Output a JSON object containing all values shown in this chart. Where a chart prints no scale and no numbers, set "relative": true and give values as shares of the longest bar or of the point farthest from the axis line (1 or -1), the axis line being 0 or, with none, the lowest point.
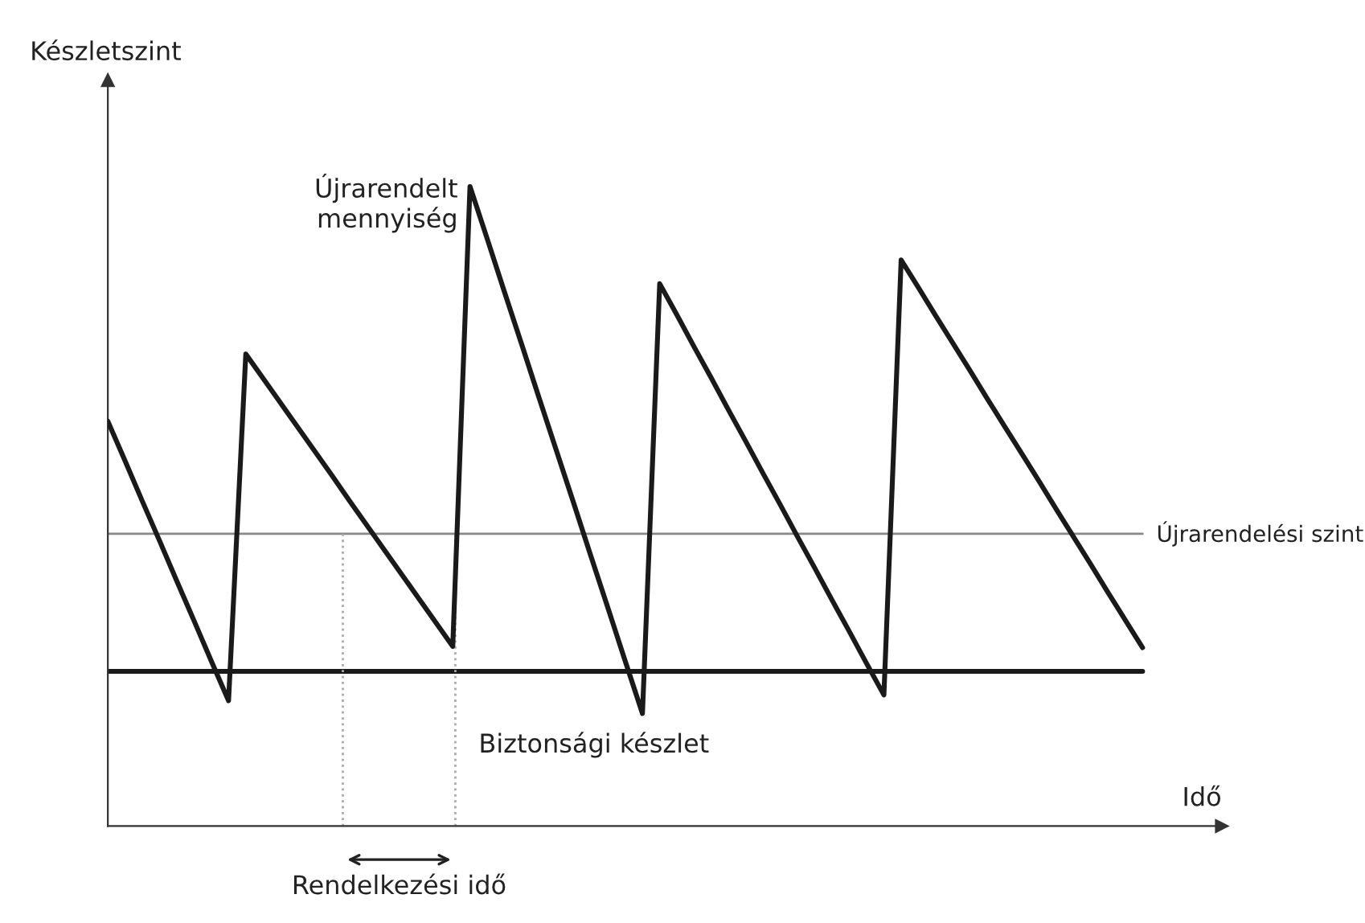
{
  "chart_data": {
    "type": "line",
    "relative": true,
    "xlabel": "Idő",
    "ylabel": "Készletszint",
    "categories": [
      null,
      null,
      null,
      null,
      null,
      null,
      null,
      null,
      null,
      null,
      null,
      null,
      null,
      null,
      null,
      null,
      null,
      null,
      null,
      null,
      null,
      null,
      null,
      null,
      null,
      null,
      null,
      null,
      null,
      null,
      null,
      null,
      null,
      null,
      null,
      null,
      null,
      null,
      null,
      null,
      null,
      null,
      null,
      null,
      null,
      null,
      null,
      null,
      null,
      null,
      null,
      null,
      null,
      null,
      null,
      null,
      null,
      null,
      null,
      null,
      null
    ],
    "series": [
      {
        "color": "#1a1a1a",
        "values": [
          0.633,
          0.571,
          0.508,
          0.446,
          0.383,
          0.321,
          0.258,
          0.196,
          0.738,
          0.7,
          0.662,
          0.624,
          0.586,
          0.548,
          0.509,
          0.471,
          0.433,
          0.395,
          0.357,
          0.319,
          0.281,
          1.0,
          0.918,
          0.835,
          0.753,
          0.67,
          0.588,
          0.506,
          0.423,
          0.341,
          0.258,
          0.176,
          0.848,
          0.799,
          0.749,
          0.7,
          0.65,
          0.601,
          0.551,
          0.502,
          0.452,
          0.403,
          0.353,
          0.304,
          0.254,
          0.205,
          0.885,
          0.842,
          0.798,
          0.755,
          0.712,
          0.668,
          0.625,
          0.582,
          0.539,
          0.495,
          0.452,
          0.409,
          0.365,
          0.322,
          0.279
        ]
      },
      {
        "name": "Újrarendelési szint",
        "color": "#888888",
        "values": [
          0.457,
          0.457,
          0.457,
          0.457,
          0.457,
          0.457,
          0.457,
          0.457,
          0.457,
          0.457,
          0.457,
          0.457,
          0.457,
          0.457,
          0.457,
          0.457,
          0.457,
          0.457,
          0.457,
          0.457,
          0.457,
          0.457,
          0.457,
          0.457,
          0.457,
          0.457,
          0.457,
          0.457,
          0.457,
          0.457,
          0.457,
          0.457,
          0.457,
          0.457,
          0.457,
          0.457,
          0.457,
          0.457,
          0.457,
          0.457,
          0.457,
          0.457,
          0.457,
          0.457,
          0.457,
          0.457,
          0.457,
          0.457,
          0.457,
          0.457,
          0.457,
          0.457,
          0.457,
          0.457,
          0.457,
          0.457,
          0.457,
          0.457,
          0.457,
          0.457,
          0.457
        ]
      },
      {
        "name": "Biztonsági készlet",
        "color": "#1a1a1a",
        "values": [
          0.242,
          0.242,
          0.242,
          0.242,
          0.242,
          0.242,
          0.242,
          0.242,
          0.242,
          0.242,
          0.242,
          0.242,
          0.242,
          0.242,
          0.242,
          0.242,
          0.242,
          0.242,
          0.242,
          0.242,
          0.242,
          0.242,
          0.242,
          0.242,
          0.242,
          0.242,
          0.242,
          0.242,
          0.242,
          0.242,
          0.242,
          0.242,
          0.242,
          0.242,
          0.242,
          0.242,
          0.242,
          0.242,
          0.242,
          0.242,
          0.242,
          0.242,
          0.242,
          0.242,
          0.242,
          0.242,
          0.242,
          0.242,
          0.242,
          0.242,
          0.242,
          0.242,
          0.242,
          0.242,
          0.242,
          0.242,
          0.242,
          0.242,
          0.242,
          0.242,
          0.242
        ]
      }
    ],
    "marker": "none",
    "line_style": "solid",
    "annotations": [
      "Újrarendelt mennyiség",
      "Rendelkezési idő"
    ]
  }
}
